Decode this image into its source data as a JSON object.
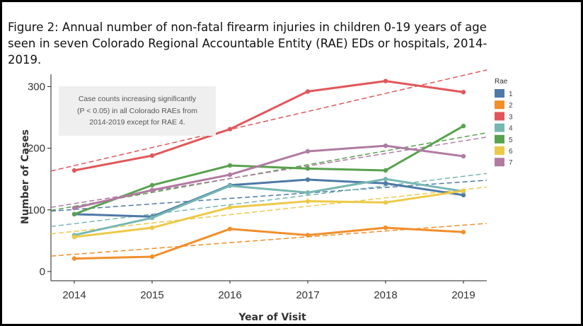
{
  "chart_data": {
    "type": "line",
    "title": "Figure 2: Annual number of non-fatal firearm injuries in  children 0-19 years of age seen in seven Colorado Regional Accountable Entity (RAE) EDs or hospitals, 2014-2019.",
    "xlabel": "Year of Visit",
    "ylabel": "Number of Cases",
    "x": [
      2014,
      2015,
      2016,
      2017,
      2018,
      2019
    ],
    "x_ticks": [
      "2014",
      "2015",
      "2016",
      "2017",
      "2018",
      "2019"
    ],
    "y_ticks": [
      0,
      100,
      200,
      300
    ],
    "xlim": [
      2013.7,
      2019.3
    ],
    "ylim": [
      -15,
      320
    ],
    "legend_title": "Rae",
    "legend_position": "right",
    "annotation": [
      "Case counts increasing significantly",
      "(P < 0.05) in all Colorado RAEs from",
      "2014-2019  except for RAE 4."
    ],
    "series": [
      {
        "name": "1",
        "color": "#4e79a7",
        "values": [
          93,
          89,
          140,
          149,
          143,
          124
        ],
        "trend": [
          98,
          148
        ]
      },
      {
        "name": "2",
        "color": "#f28e2b",
        "values": [
          21,
          24,
          69,
          59,
          71,
          64
        ],
        "trend": [
          25,
          78
        ]
      },
      {
        "name": "3",
        "color": "#e15759",
        "values": [
          164,
          188,
          231,
          292,
          309,
          291
        ],
        "trend": [
          163,
          327
        ]
      },
      {
        "name": "4",
        "color": "#76b7b2",
        "values": [
          59,
          87,
          139,
          128,
          150,
          130
        ],
        "trend": [
          73,
          159
        ]
      },
      {
        "name": "5",
        "color": "#59a14f",
        "values": [
          93,
          140,
          172,
          167,
          164,
          236
        ],
        "trend": [
          99,
          225
        ]
      },
      {
        "name": "6",
        "color": "#edc948",
        "values": [
          56,
          71,
          104,
          114,
          112,
          131
        ],
        "trend": [
          61,
          137
        ]
      },
      {
        "name": "7",
        "color": "#b07aa1",
        "values": [
          103,
          132,
          157,
          195,
          204,
          187
        ],
        "trend": [
          104,
          218
        ]
      }
    ]
  }
}
